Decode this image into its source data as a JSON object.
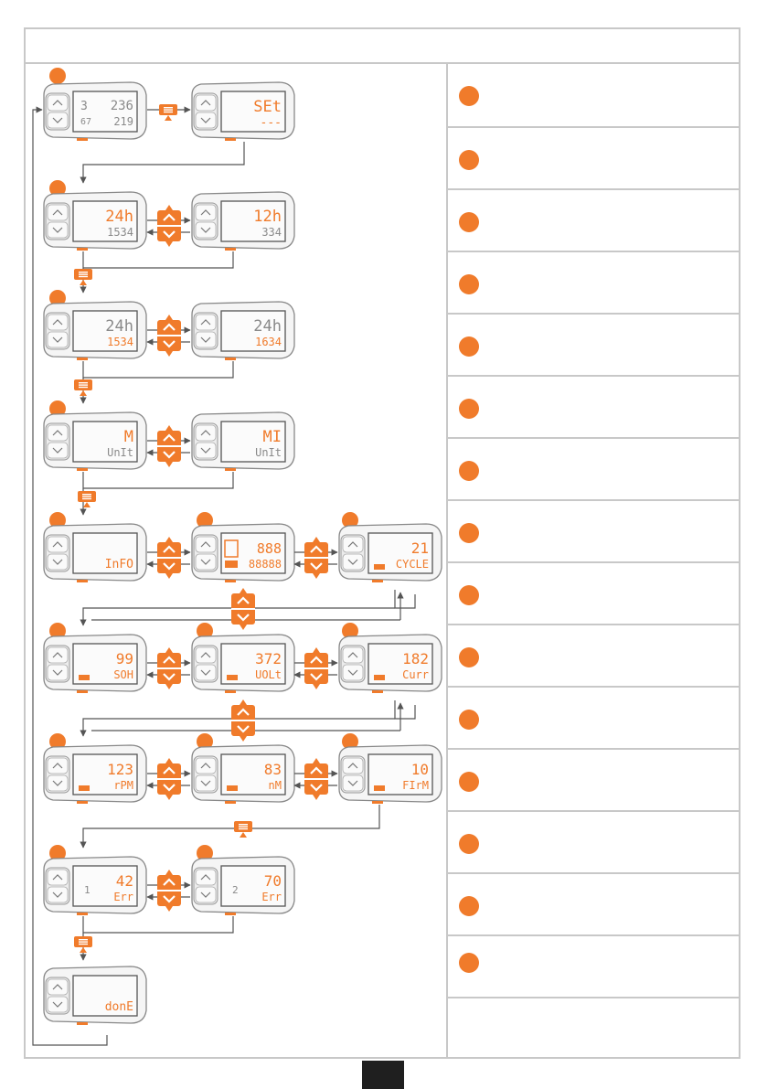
{
  "accent_color": "#f07b2b",
  "line_color": "#555555",
  "screens": {
    "s1": {
      "top": "236",
      "bottom": "219",
      "left1": "3",
      "left2": "67"
    },
    "s2": {
      "top": "SEt",
      "bottom": "---"
    },
    "s3": {
      "top": "24h",
      "bottom": "1534"
    },
    "s4": {
      "top": "12h",
      "bottom": "334"
    },
    "s5": {
      "top": "24h",
      "bottom": "1534"
    },
    "s6": {
      "top": "24h",
      "bottom": "1634"
    },
    "s7": {
      "top": "M",
      "bottom": "UnIt"
    },
    "s8": {
      "top": "MI",
      "bottom": "UnIt"
    },
    "s9": {
      "top": "",
      "bottom": "InFO"
    },
    "s10": {
      "top": "888",
      "bottom": "88888"
    },
    "s11": {
      "top": "21",
      "bottom": "CYCLE"
    },
    "s12": {
      "top": "99",
      "bottom": "SOH"
    },
    "s13": {
      "top": "372",
      "bottom": "UOLt"
    },
    "s14": {
      "top": "182",
      "bottom": "Curr"
    },
    "s15": {
      "top": "123",
      "bottom": "rPM"
    },
    "s16": {
      "top": "83",
      "bottom": "nM"
    },
    "s17": {
      "top": "10",
      "bottom": "FIrM"
    },
    "s18": {
      "top": "42",
      "bottom": "Err",
      "left": "1"
    },
    "s19": {
      "top": "70",
      "bottom": "Err",
      "left": "2"
    },
    "s20": {
      "top": "",
      "bottom": "donE"
    }
  }
}
